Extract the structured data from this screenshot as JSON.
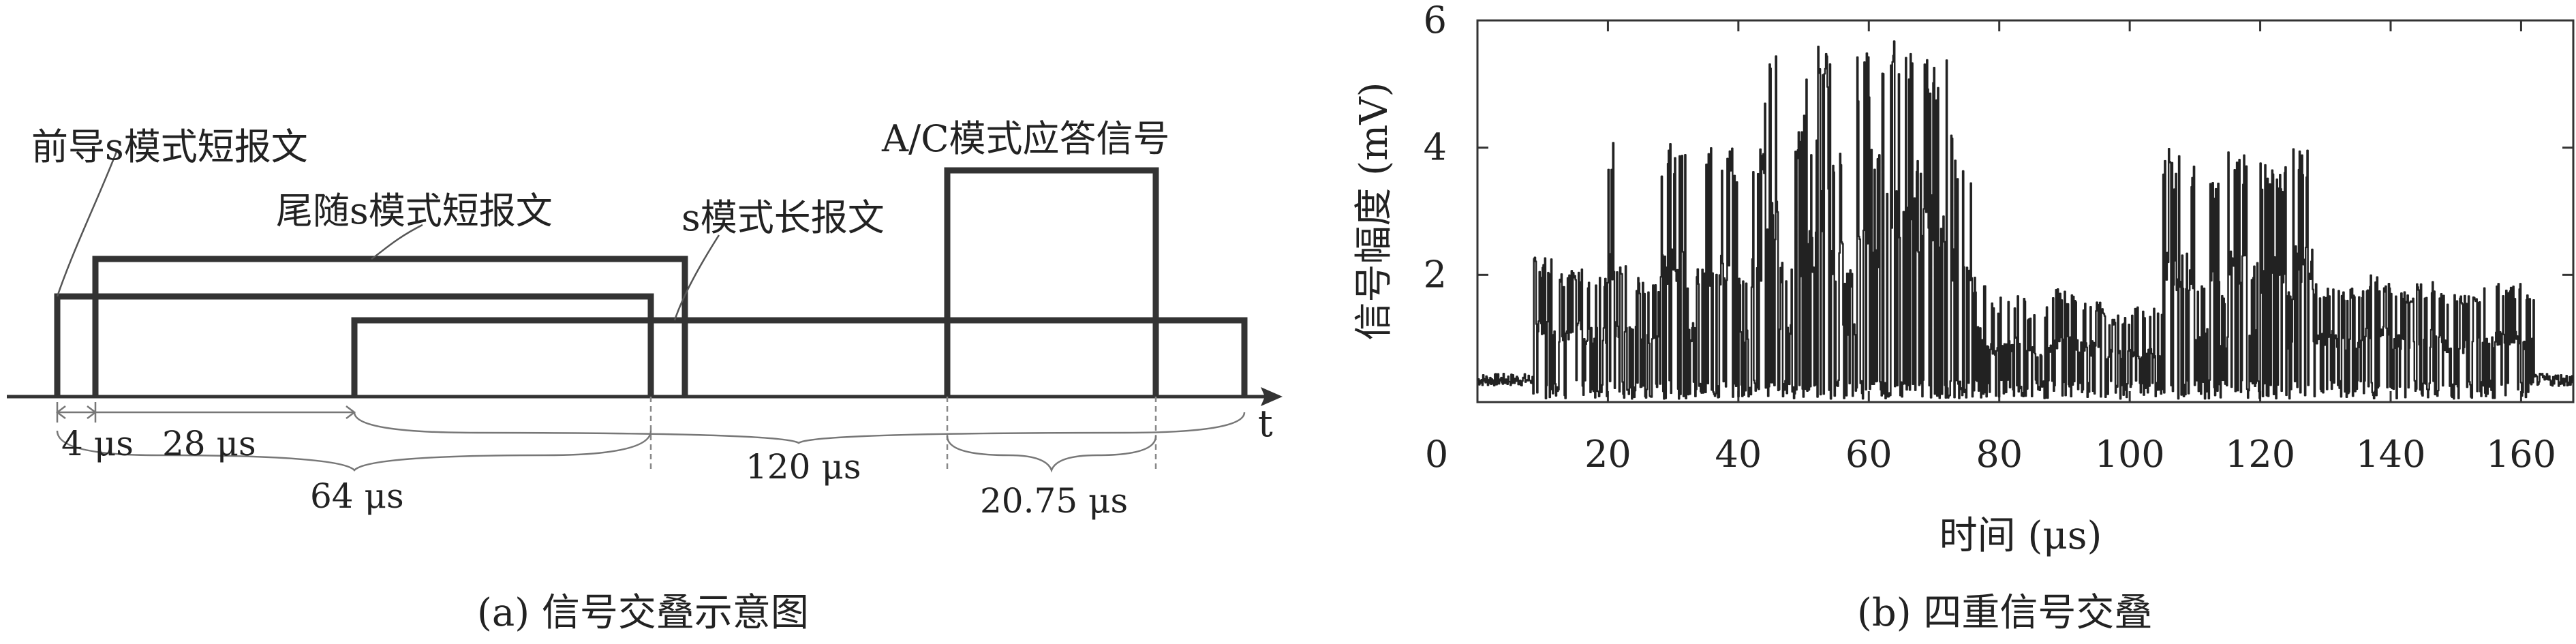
{
  "diagram_a": {
    "labels": {
      "preamble": "前导s模式短报文",
      "trailing": "尾随s模式短报文",
      "long_msg": "s模式长报文",
      "ac_reply": "A/C模式应答信号",
      "t_axis": "t"
    },
    "intervals": {
      "d4": "4 μs",
      "d28": "28 μs",
      "d64": "64 μs",
      "d120": "120 μs",
      "d2075": "20.75 μs"
    },
    "caption": "(a) 信号交叠示意图"
  },
  "chart_b": {
    "caption": "(b) 四重信号交叠"
  },
  "chart_data": {
    "type": "line",
    "title": "",
    "xlabel": "时间 (μs)",
    "ylabel": "信号幅度 (mV)",
    "xlim": [
      0,
      168
    ],
    "ylim": [
      0,
      6
    ],
    "x_ticks": [
      20,
      40,
      60,
      80,
      100,
      120,
      140,
      160
    ],
    "y_ticks": [
      2,
      4,
      6
    ],
    "x_origin_label": "0",
    "grid": false,
    "series": [
      {
        "x": [
          0,
          8,
          8.5,
          12,
          15,
          16,
          20,
          21,
          24,
          28,
          32,
          35,
          40,
          42,
          44,
          46,
          48,
          50,
          51,
          52,
          53,
          54,
          56,
          58,
          60,
          62,
          63,
          64,
          65,
          66,
          67,
          68,
          70,
          72,
          73,
          74,
          76,
          78,
          80,
          84,
          88,
          92,
          96,
          100,
          104,
          105,
          106,
          110,
          112,
          114,
          115,
          118,
          120,
          124,
          125,
          128,
          132,
          136,
          140,
          144,
          148,
          152,
          156,
          160,
          162,
          168
        ],
        "y": [
          0.3,
          0.3,
          2.3,
          2.1,
          2.2,
          2.0,
          4.1,
          2.2,
          2.0,
          4.1,
          2.1,
          4.0,
          2.0,
          4.1,
          5.5,
          2.2,
          4.3,
          5.1,
          4.5,
          5.7,
          5.6,
          4.2,
          2.1,
          5.5,
          4.2,
          5.5,
          5.7,
          5.6,
          5.7,
          5.5,
          4.2,
          5.6,
          5.4,
          4.2,
          4.0,
          3.8,
          2.0,
          1.6,
          1.7,
          1.5,
          1.8,
          1.6,
          1.4,
          1.5,
          1.6,
          4.1,
          3.9,
          2.0,
          3.6,
          1.8,
          4.0,
          2.2,
          3.8,
          1.8,
          4.1,
          1.9,
          1.8,
          2.0,
          1.8,
          1.9,
          1.7,
          1.8,
          1.9,
          1.7,
          0.3,
          0.3
        ]
      }
    ]
  }
}
